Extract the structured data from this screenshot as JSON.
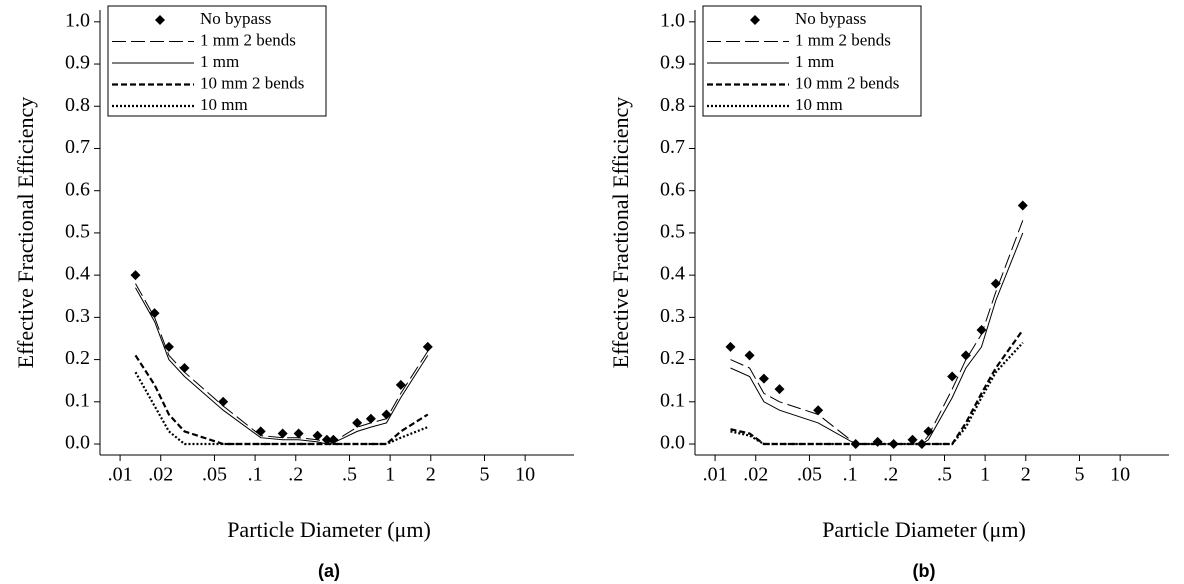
{
  "chart_data": [
    {
      "type": "line",
      "caption": "(a)",
      "x_label": "Particle Diameter (μm)",
      "y_label": "Effective Fractional Efficiency",
      "xscale": "log",
      "xlim": [
        0.0071,
        23
      ],
      "ylim": [
        -0.026,
        1.028
      ],
      "xticks": [
        {
          "value": 0.01,
          "label": ".01"
        },
        {
          "value": 0.02,
          "label": ".02"
        },
        {
          "value": 0.05,
          "label": ".05"
        },
        {
          "value": 0.1,
          "label": ".1"
        },
        {
          "value": 0.2,
          "label": ".2"
        },
        {
          "value": 0.5,
          "label": ".5"
        },
        1,
        2,
        5,
        10
      ],
      "yticks": [
        {
          "value": 0,
          "label": "0.0"
        },
        0.1,
        0.2,
        0.3,
        0.4,
        0.5,
        0.6,
        0.7,
        0.8,
        0.9,
        {
          "value": 1,
          "label": "1.0"
        }
      ],
      "legend": "upper left",
      "x": [
        0.013,
        0.018,
        0.023,
        0.03,
        0.058,
        0.11,
        0.16,
        0.21,
        0.29,
        0.34,
        0.38,
        0.57,
        0.72,
        0.94,
        1.2,
        1.9
      ],
      "series": [
        {
          "name": "No bypass",
          "color": "#000000",
          "style": "marker",
          "values": [
            0.4,
            0.31,
            0.23,
            0.18,
            0.1,
            0.03,
            0.025,
            0.025,
            0.02,
            0.01,
            0.01,
            0.05,
            0.06,
            0.07,
            0.14,
            0.23
          ]
        },
        {
          "name": "1 mm 2 bends",
          "color": "#000000",
          "style": "longdash",
          "values": [
            0.38,
            0.3,
            0.21,
            0.17,
            0.09,
            0.02,
            0.015,
            0.015,
            0.01,
            0.005,
            0.005,
            0.04,
            0.05,
            0.06,
            0.12,
            0.22
          ]
        },
        {
          "name": "1 mm",
          "color": "#000000",
          "style": "solid",
          "values": [
            0.37,
            0.29,
            0.2,
            0.16,
            0.08,
            0.015,
            0.01,
            0.01,
            0.005,
            0,
            0.003,
            0.03,
            0.04,
            0.05,
            0.11,
            0.21
          ]
        },
        {
          "name": "10 mm 2 bends",
          "color": "#000000",
          "style": "dash",
          "values": [
            0.21,
            0.14,
            0.07,
            0.03,
            0,
            0,
            0,
            0,
            0,
            0,
            0,
            0,
            0,
            0,
            0.03,
            0.07
          ]
        },
        {
          "name": "10 mm",
          "color": "#000000",
          "style": "dot",
          "values": [
            0.17,
            0.09,
            0.03,
            0,
            0,
            0,
            0,
            0,
            0,
            0,
            0,
            0,
            0,
            0,
            0.015,
            0.04
          ]
        }
      ]
    },
    {
      "type": "line",
      "caption": "(b)",
      "x_label": "Particle Diameter (μm)",
      "y_label": "Effective Fractional Efficiency",
      "xscale": "log",
      "xlim": [
        0.0071,
        23
      ],
      "ylim": [
        -0.026,
        1.028
      ],
      "xticks": [
        {
          "value": 0.01,
          "label": ".01"
        },
        {
          "value": 0.02,
          "label": ".02"
        },
        {
          "value": 0.05,
          "label": ".05"
        },
        {
          "value": 0.1,
          "label": ".1"
        },
        {
          "value": 0.2,
          "label": ".2"
        },
        {
          "value": 0.5,
          "label": ".5"
        },
        1,
        2,
        5,
        10
      ],
      "yticks": [
        {
          "value": 0,
          "label": "0.0"
        },
        0.1,
        0.2,
        0.3,
        0.4,
        0.5,
        0.6,
        0.7,
        0.8,
        0.9,
        {
          "value": 1,
          "label": "1.0"
        }
      ],
      "legend": "upper left",
      "x": [
        0.013,
        0.018,
        0.023,
        0.03,
        0.058,
        0.11,
        0.16,
        0.21,
        0.29,
        0.34,
        0.38,
        0.57,
        0.72,
        0.94,
        1.2,
        1.9
      ],
      "series": [
        {
          "name": "No bypass",
          "color": "#000000",
          "style": "marker",
          "values": [
            0.23,
            0.21,
            0.155,
            0.13,
            0.08,
            0,
            0.005,
            0,
            0.01,
            0,
            0.03,
            0.16,
            0.21,
            0.27,
            0.38,
            0.565
          ]
        },
        {
          "name": "1 mm 2 bends",
          "color": "#000000",
          "style": "longdash",
          "values": [
            0.2,
            0.18,
            0.12,
            0.1,
            0.07,
            0,
            0,
            0,
            0,
            0,
            0.02,
            0.13,
            0.2,
            0.26,
            0.36,
            0.53
          ]
        },
        {
          "name": "1 mm",
          "color": "#000000",
          "style": "solid",
          "values": [
            0.18,
            0.16,
            0.1,
            0.08,
            0.05,
            0,
            0,
            0,
            0,
            0,
            0.01,
            0.11,
            0.18,
            0.23,
            0.34,
            0.5
          ]
        },
        {
          "name": "10 mm 2 bends",
          "color": "#000000",
          "style": "dash",
          "values": [
            0.035,
            0.025,
            0,
            0,
            0,
            0,
            0,
            0,
            0,
            0,
            0,
            0,
            0.05,
            0.12,
            0.18,
            0.27
          ]
        },
        {
          "name": "10 mm",
          "color": "#000000",
          "style": "dot",
          "values": [
            0.03,
            0.02,
            0,
            0,
            0,
            0,
            0,
            0,
            0,
            0,
            0,
            0,
            0.04,
            0.11,
            0.17,
            0.24
          ]
        }
      ]
    }
  ]
}
